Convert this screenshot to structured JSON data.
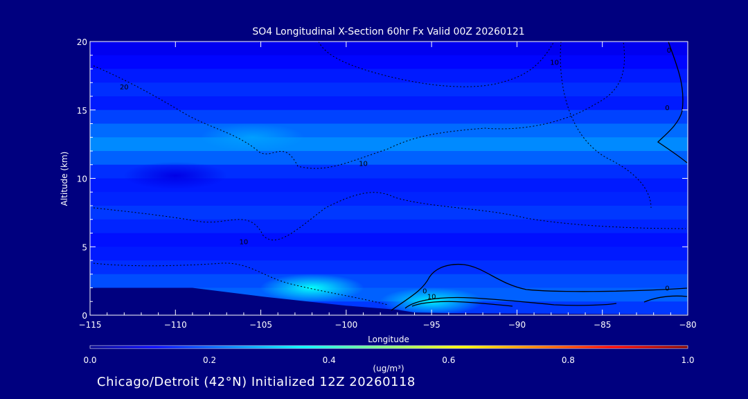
{
  "chart_data": {
    "type": "heatmap",
    "title": "SO4 Longitudinal X-Section 60hr  Fx Valid 00Z 20260121",
    "xlabel": "Longitude",
    "ylabel": "Altitude (km)",
    "xlim": [
      -115,
      -80
    ],
    "ylim": [
      0,
      20
    ],
    "x_ticks": [
      -115,
      -110,
      -105,
      -100,
      -95,
      -90,
      -85,
      -80
    ],
    "x_tick_labels": [
      "−115",
      "−110",
      "−105",
      "−100",
      "−95",
      "−90",
      "−85",
      "−80"
    ],
    "y_ticks": [
      0,
      5,
      10,
      15,
      20
    ],
    "y_tick_labels": [
      "0",
      "5",
      "10",
      "15",
      "20"
    ],
    "colorbar": {
      "label": "(ug/m³)",
      "ticks": [
        0.0,
        0.2,
        0.4,
        0.6,
        0.8,
        1.0
      ],
      "tick_labels": [
        "0.0",
        "0.2",
        "0.4",
        "0.6",
        "0.8",
        "1.0"
      ],
      "colormap": "jet"
    },
    "bands": [
      {
        "alt_min": 19.0,
        "alt_max": 20.0,
        "value": 0.11
      },
      {
        "alt_min": 18.0,
        "alt_max": 19.0,
        "value": 0.13
      },
      {
        "alt_min": 17.0,
        "alt_max": 18.0,
        "value": 0.15
      },
      {
        "alt_min": 16.0,
        "alt_max": 17.0,
        "value": 0.17
      },
      {
        "alt_min": 15.0,
        "alt_max": 16.0,
        "value": 0.15
      },
      {
        "alt_min": 14.0,
        "alt_max": 15.0,
        "value": 0.19
      },
      {
        "alt_min": 13.0,
        "alt_max": 14.0,
        "value": 0.23
      },
      {
        "alt_min": 12.0,
        "alt_max": 13.0,
        "value": 0.26
      },
      {
        "alt_min": 11.0,
        "alt_max": 12.0,
        "value": 0.22
      },
      {
        "alt_min": 10.0,
        "alt_max": 11.0,
        "value": 0.17
      },
      {
        "alt_min": 9.0,
        "alt_max": 10.0,
        "value": 0.15
      },
      {
        "alt_min": 8.0,
        "alt_max": 9.0,
        "value": 0.16
      },
      {
        "alt_min": 7.0,
        "alt_max": 8.0,
        "value": 0.18
      },
      {
        "alt_min": 6.0,
        "alt_max": 7.0,
        "value": 0.16
      },
      {
        "alt_min": 5.0,
        "alt_max": 6.0,
        "value": 0.14
      },
      {
        "alt_min": 4.0,
        "alt_max": 5.0,
        "value": 0.15
      },
      {
        "alt_min": 3.0,
        "alt_max": 4.0,
        "value": 0.17
      },
      {
        "alt_min": 2.0,
        "alt_max": 3.0,
        "value": 0.2
      },
      {
        "alt_min": 1.0,
        "alt_max": 2.0,
        "value": 0.22
      },
      {
        "alt_min": 0.0,
        "alt_max": 1.0,
        "value": 0.18
      }
    ],
    "features": [
      {
        "lon": -102,
        "alt": 2.0,
        "value": 0.38
      },
      {
        "lon": -95,
        "alt": 1.0,
        "value": 0.36
      },
      {
        "lon": -105.5,
        "alt": 13.0,
        "value": 0.28
      },
      {
        "lon": -110,
        "alt": 10.2,
        "value": 0.1
      }
    ],
    "terrain": [
      [
        -115,
        2.0
      ],
      [
        -109,
        2.0
      ],
      [
        -104.5,
        1.3
      ],
      [
        -100,
        0.7
      ],
      [
        -97,
        0.4
      ],
      [
        -96,
        0.2
      ],
      [
        -94,
        0.15
      ],
      [
        -80,
        0.05
      ]
    ],
    "contour_labels": [
      {
        "text": "20",
        "lon": -113,
        "alt": 16.5
      },
      {
        "text": "10",
        "lon": -99,
        "alt": 10.9
      },
      {
        "text": "10",
        "lon": -87.8,
        "alt": 18.3
      },
      {
        "text": "10",
        "lon": -106,
        "alt": 5.2
      },
      {
        "text": "10",
        "lon": -95,
        "alt": 1.2
      },
      {
        "text": "0",
        "lon": -95.4,
        "alt": 1.6
      },
      {
        "text": "0",
        "lon": -81.2,
        "alt": 1.8
      },
      {
        "text": "0",
        "lon": -81.2,
        "alt": 15.0
      },
      {
        "text": "0",
        "lon": -81.1,
        "alt": 19.2
      }
    ]
  },
  "footer": "Chicago/Detroit (42°N) Initialized 12Z 20260118"
}
